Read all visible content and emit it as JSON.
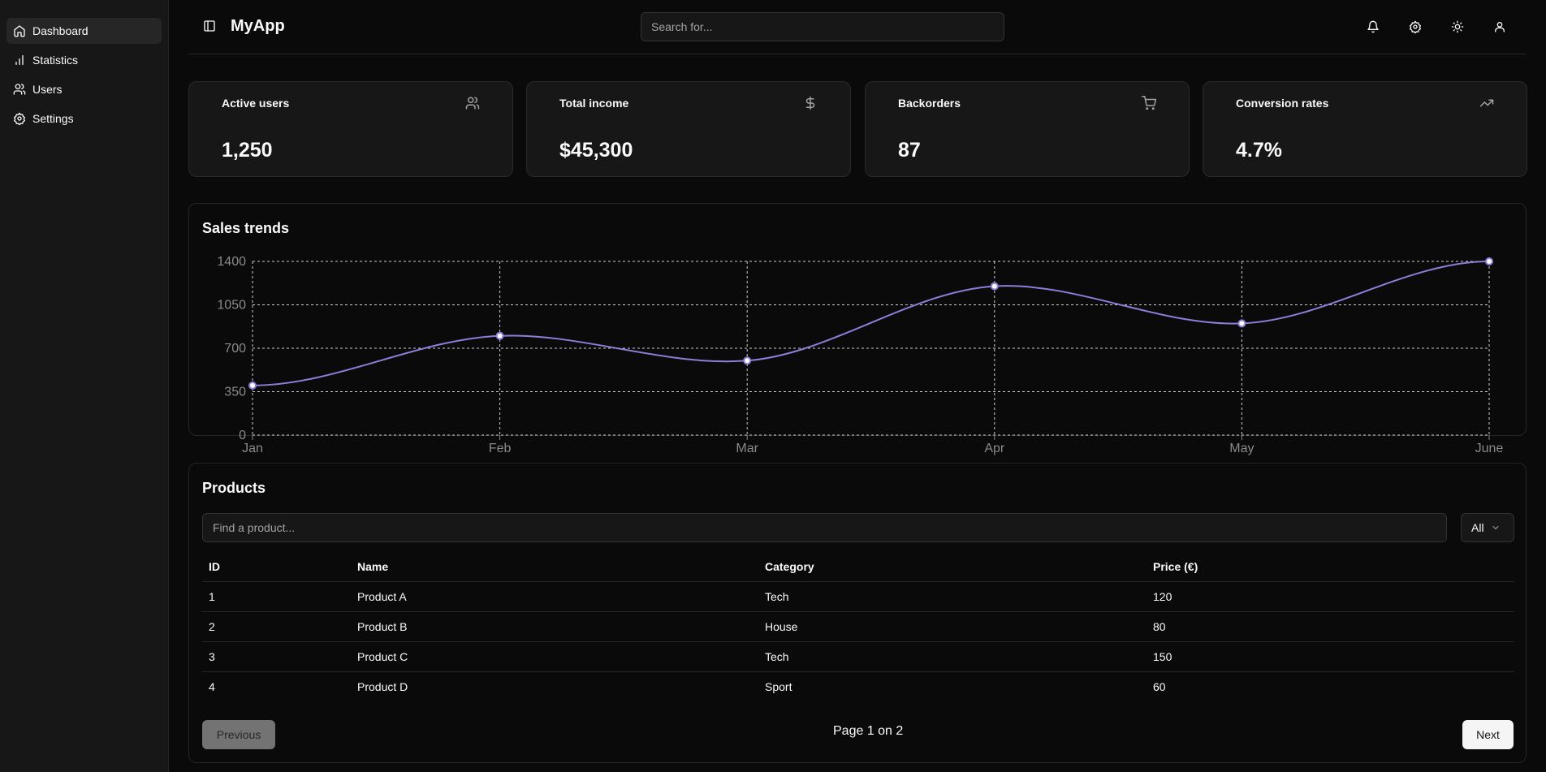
{
  "sidebar": {
    "items": [
      {
        "label": "Dashboard",
        "icon": "home-icon"
      },
      {
        "label": "Statistics",
        "icon": "bar-chart-icon"
      },
      {
        "label": "Users",
        "icon": "users-icon"
      },
      {
        "label": "Settings",
        "icon": "gear-icon"
      }
    ]
  },
  "header": {
    "title": "MyApp",
    "search_placeholder": "Search for...",
    "icons": [
      "bell-icon",
      "gear-icon",
      "sun-icon",
      "user-icon"
    ]
  },
  "stats": [
    {
      "title": "Active users",
      "value": "1,250",
      "icon": "users-icon"
    },
    {
      "title": "Total income",
      "value": "$45,300",
      "icon": "dollar-icon"
    },
    {
      "title": "Backorders",
      "value": "87",
      "icon": "cart-icon"
    },
    {
      "title": "Conversion rates",
      "value": "4.7%",
      "icon": "trending-up-icon"
    }
  ],
  "chart_data": {
    "type": "line",
    "title": "Sales trends",
    "categories": [
      "Jan",
      "Feb",
      "Mar",
      "Apr",
      "May",
      "June"
    ],
    "values": [
      400,
      800,
      600,
      1200,
      900,
      1400
    ],
    "yticks": [
      0,
      350,
      700,
      1050,
      1400
    ],
    "ylim": [
      0,
      1400
    ],
    "grid": true,
    "line_color": "#8b7fd9",
    "xlabel": "",
    "ylabel": ""
  },
  "products": {
    "title": "Products",
    "search_placeholder": "Find a product...",
    "filter_label": "All",
    "columns": [
      "ID",
      "Name",
      "Category",
      "Price (€)"
    ],
    "rows": [
      [
        "1",
        "Product A",
        "Tech",
        "120"
      ],
      [
        "2",
        "Product B",
        "House",
        "80"
      ],
      [
        "3",
        "Product C",
        "Tech",
        "150"
      ],
      [
        "4",
        "Product D",
        "Sport",
        "60"
      ]
    ],
    "prev_label": "Previous",
    "next_label": "Next",
    "page_text": "Page 1 on 2"
  }
}
